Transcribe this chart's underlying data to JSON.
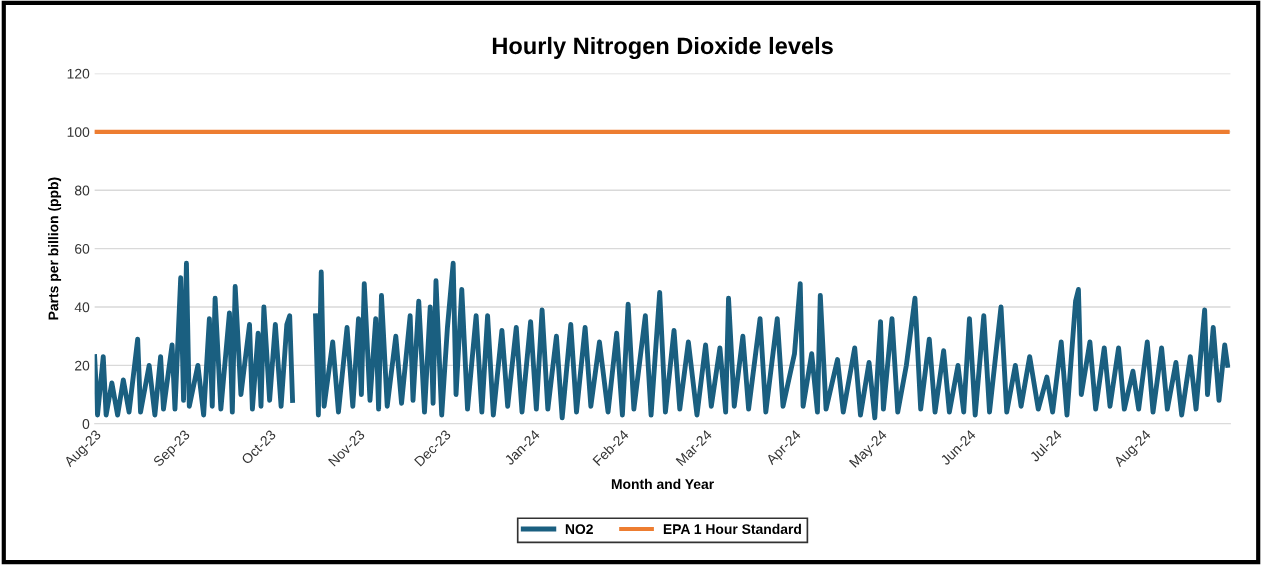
{
  "chart_data": {
    "type": "line",
    "title": "Hourly Nitrogen Dioxide levels",
    "xlabel": "Month and Year",
    "ylabel": "Parts per billion (ppb)",
    "xlim": [
      "2023-08-01",
      "2024-08-31"
    ],
    "xticks": [
      {
        "value": "2023-08-01",
        "label": "Aug-23"
      },
      {
        "value": "2023-09-01",
        "label": "Sep-23"
      },
      {
        "value": "2023-10-01",
        "label": "Oct-23"
      },
      {
        "value": "2023-11-01",
        "label": "Nov-23"
      },
      {
        "value": "2023-12-01",
        "label": "Dec-23"
      },
      {
        "value": "2024-01-01",
        "label": "Jan-24"
      },
      {
        "value": "2024-02-01",
        "label": "Feb-24"
      },
      {
        "value": "2024-03-01",
        "label": "Mar-24"
      },
      {
        "value": "2024-04-01",
        "label": "Apr-24"
      },
      {
        "value": "2024-05-01",
        "label": "May-24"
      },
      {
        "value": "2024-06-01",
        "label": "Jun-24"
      },
      {
        "value": "2024-07-01",
        "label": "Jul-24"
      },
      {
        "value": "2024-08-01",
        "label": "Aug-24"
      }
    ],
    "ylim": [
      0,
      120
    ],
    "yticks": [
      0,
      20,
      40,
      60,
      80,
      100,
      120
    ],
    "grid": "y",
    "legend": "bottom",
    "marker": "none",
    "line_style": "solid",
    "series": [
      {
        "name": "NO2",
        "color": "#1a5f80",
        "x": [
          "2023-08-01",
          "2023-08-02",
          "2023-08-04",
          "2023-08-05",
          "2023-08-07",
          "2023-08-09",
          "2023-08-11",
          "2023-08-13",
          "2023-08-16",
          "2023-08-17",
          "2023-08-20",
          "2023-08-22",
          "2023-08-24",
          "2023-08-25",
          "2023-08-28",
          "2023-08-29",
          "2023-08-31",
          "2023-09-01",
          "2023-09-02",
          "2023-09-03",
          "2023-09-06",
          "2023-09-08",
          "2023-09-10",
          "2023-09-11",
          "2023-09-12",
          "2023-09-14",
          "2023-09-17",
          "2023-09-18",
          "2023-09-19",
          "2023-09-21",
          "2023-09-24",
          "2023-09-25",
          "2023-09-27",
          "2023-09-28",
          "2023-09-29",
          "2023-10-01",
          "2023-10-03",
          "2023-10-05",
          "2023-10-07",
          "2023-10-08",
          "2023-10-09",
          "2023-10-13",
          "2023-10-17",
          "2023-10-18",
          "2023-10-19",
          "2023-10-20",
          "2023-10-23",
          "2023-10-25",
          "2023-10-28",
          "2023-10-30",
          "2023-11-01",
          "2023-11-02",
          "2023-11-03",
          "2023-11-05",
          "2023-11-07",
          "2023-11-08",
          "2023-11-09",
          "2023-11-11",
          "2023-11-14",
          "2023-11-16",
          "2023-11-19",
          "2023-11-20",
          "2023-11-22",
          "2023-11-24",
          "2023-11-26",
          "2023-11-27",
          "2023-11-28",
          "2023-11-30",
          "2023-12-02",
          "2023-12-04",
          "2023-12-05",
          "2023-12-07",
          "2023-12-09",
          "2023-12-12",
          "2023-12-14",
          "2023-12-16",
          "2023-12-18",
          "2023-12-21",
          "2023-12-23",
          "2023-12-26",
          "2023-12-28",
          "2023-12-31",
          "2024-01-02",
          "2024-01-04",
          "2024-01-06",
          "2024-01-09",
          "2024-01-11",
          "2024-01-14",
          "2024-01-16",
          "2024-01-19",
          "2024-01-21",
          "2024-01-24",
          "2024-01-27",
          "2024-01-30",
          "2024-02-01",
          "2024-02-03",
          "2024-02-05",
          "2024-02-09",
          "2024-02-11",
          "2024-02-14",
          "2024-02-16",
          "2024-02-19",
          "2024-02-21",
          "2024-02-24",
          "2024-02-27",
          "2024-03-01",
          "2024-03-03",
          "2024-03-06",
          "2024-03-08",
          "2024-03-09",
          "2024-03-11",
          "2024-03-14",
          "2024-03-16",
          "2024-03-20",
          "2024-03-22",
          "2024-03-26",
          "2024-03-28",
          "2024-04-01",
          "2024-04-03",
          "2024-04-04",
          "2024-04-07",
          "2024-04-09",
          "2024-04-10",
          "2024-04-12",
          "2024-04-16",
          "2024-04-18",
          "2024-04-22",
          "2024-04-24",
          "2024-04-27",
          "2024-04-29",
          "2024-05-01",
          "2024-05-02",
          "2024-05-05",
          "2024-05-07",
          "2024-05-10",
          "2024-05-13",
          "2024-05-15",
          "2024-05-18",
          "2024-05-20",
          "2024-05-23",
          "2024-05-25",
          "2024-05-28",
          "2024-05-30",
          "2024-06-01",
          "2024-06-03",
          "2024-06-06",
          "2024-06-08",
          "2024-06-12",
          "2024-06-14",
          "2024-06-17",
          "2024-06-19",
          "2024-06-22",
          "2024-06-25",
          "2024-06-28",
          "2024-06-30",
          "2024-07-03",
          "2024-07-05",
          "2024-07-08",
          "2024-07-09",
          "2024-07-10",
          "2024-07-13",
          "2024-07-15",
          "2024-07-18",
          "2024-07-20",
          "2024-07-23",
          "2024-07-25",
          "2024-07-28",
          "2024-07-30",
          "2024-08-02",
          "2024-08-04",
          "2024-08-07",
          "2024-08-09",
          "2024-08-12",
          "2024-08-14",
          "2024-08-17",
          "2024-08-19",
          "2024-08-22",
          "2024-08-23",
          "2024-08-25",
          "2024-08-27",
          "2024-08-29",
          "2024-08-30"
        ],
        "values": [
          23,
          3,
          23,
          3,
          14,
          3,
          15,
          4,
          29,
          4,
          20,
          3,
          23,
          5,
          27,
          5,
          50,
          8,
          55,
          6,
          20,
          3,
          36,
          6,
          43,
          5,
          38,
          4,
          47,
          10,
          34,
          5,
          31,
          6,
          40,
          8,
          34,
          6,
          34,
          37,
          8,
          null,
          37,
          3,
          52,
          6,
          28,
          4,
          33,
          6,
          36,
          10,
          48,
          8,
          36,
          5,
          44,
          6,
          30,
          7,
          37,
          8,
          42,
          4,
          40,
          7,
          49,
          3,
          33,
          55,
          10,
          46,
          5,
          37,
          4,
          37,
          3,
          32,
          6,
          33,
          4,
          35,
          5,
          39,
          5,
          30,
          2,
          34,
          4,
          33,
          6,
          28,
          4,
          31,
          3,
          41,
          5,
          37,
          3,
          45,
          4,
          32,
          5,
          28,
          3,
          27,
          6,
          26,
          4,
          43,
          6,
          30,
          5,
          36,
          4,
          36,
          6,
          24,
          48,
          6,
          24,
          4,
          44,
          5,
          22,
          4,
          26,
          3,
          21,
          2,
          35,
          5,
          36,
          4,
          20,
          43,
          5,
          29,
          4,
          25,
          4,
          20,
          4,
          36,
          3,
          37,
          4,
          40,
          4,
          20,
          6,
          23,
          5,
          16,
          4,
          28,
          3,
          42,
          46,
          10,
          28,
          5,
          26,
          6,
          26,
          5,
          18,
          5,
          28,
          4,
          26,
          5,
          21,
          3,
          23,
          5,
          39,
          10,
          33,
          8,
          27,
          20
        ]
      },
      {
        "name": "EPA 1 Hour Standard",
        "color": "#ed7d31",
        "x": [
          "2023-08-01",
          "2024-08-30"
        ],
        "values": [
          100,
          100
        ]
      }
    ]
  }
}
